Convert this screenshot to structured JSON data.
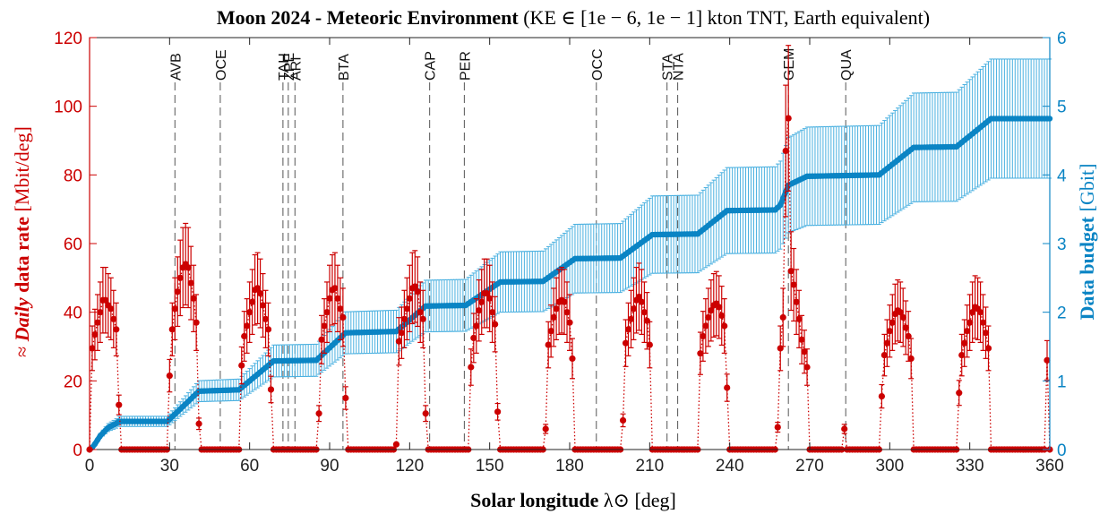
{
  "chart_data": {
    "type": "line",
    "title": {
      "bold": "Moon 2024 - Meteoric Environment",
      "rest": " (KE ∈ [1e − 6, 1e − 1] kton TNT, Earth equivalent)"
    },
    "xlabel": {
      "bold": "Solar longitude",
      "rest": " λ⊙ [deg]"
    },
    "ylabel_left": {
      "prefix": "≈ ",
      "italic": "Daily",
      "bold": " data rate",
      "rest": " [Mbit/deg]"
    },
    "ylabel_right": {
      "bold": "Data budget",
      "rest": " [Gbit]"
    },
    "xlim": [
      0,
      360
    ],
    "ylim_left": [
      0,
      120
    ],
    "ylim_right": [
      0,
      6
    ],
    "x_ticks": [
      "0",
      "30",
      "60",
      "90",
      "120",
      "150",
      "180",
      "210",
      "240",
      "270",
      "300",
      "330",
      "360"
    ],
    "y_left_ticks": [
      "0",
      "20",
      "40",
      "60",
      "80",
      "100",
      "120"
    ],
    "y_right_ticks": [
      "0",
      "1",
      "2",
      "3",
      "4",
      "5",
      "6"
    ],
    "grid": false,
    "colors": {
      "rate": "#cc0000",
      "budget": "#0a84c4",
      "budget_err": "#49b0e0",
      "shower_line": "#555555"
    },
    "showers": [
      {
        "name": "AVB",
        "lon": 32
      },
      {
        "name": "OCE",
        "lon": 49
      },
      {
        "name": "TAH",
        "lon": 72.5
      },
      {
        "name": "ZPE",
        "lon": 74.5
      },
      {
        "name": "ARI",
        "lon": 77
      },
      {
        "name": "BTA",
        "lon": 95
      },
      {
        "name": "CAP",
        "lon": 127.5
      },
      {
        "name": "PER",
        "lon": 140.5
      },
      {
        "name": "OCC",
        "lon": 190
      },
      {
        "name": "STA",
        "lon": 216.5
      },
      {
        "name": "NTA",
        "lon": 220.5
      },
      {
        "name": "GEM",
        "lon": 262
      },
      {
        "name": "QUA",
        "lon": 283.5
      }
    ],
    "series": [
      {
        "axis": "left",
        "style": "points-errorbars-dotted",
        "points": [
          [
            0,
            0
          ],
          [
            1,
            29.5
          ],
          [
            2,
            33.5
          ],
          [
            3,
            37
          ],
          [
            4,
            40
          ],
          [
            5,
            43.5
          ],
          [
            6,
            43.5
          ],
          [
            7,
            42
          ],
          [
            8,
            41
          ],
          [
            9,
            38
          ],
          [
            10,
            35
          ],
          [
            11,
            13
          ],
          [
            30,
            21.5
          ],
          [
            31,
            35
          ],
          [
            32,
            41
          ],
          [
            33,
            46
          ],
          [
            34,
            50
          ],
          [
            35,
            53
          ],
          [
            36,
            54
          ],
          [
            37,
            53
          ],
          [
            38,
            48.5
          ],
          [
            39,
            44
          ],
          [
            40,
            37
          ],
          [
            41,
            7.5
          ],
          [
            57,
            24.5
          ],
          [
            58,
            33
          ],
          [
            59,
            36
          ],
          [
            60,
            40
          ],
          [
            61,
            43
          ],
          [
            62,
            46.5
          ],
          [
            63,
            47
          ],
          [
            64,
            45.5
          ],
          [
            65,
            42
          ],
          [
            66,
            38
          ],
          [
            67,
            35
          ],
          [
            68,
            17.5
          ],
          [
            86,
            10.5
          ],
          [
            87,
            32
          ],
          [
            88,
            36
          ],
          [
            89,
            40
          ],
          [
            90,
            44
          ],
          [
            91,
            46.5
          ],
          [
            92,
            47
          ],
          [
            93,
            44
          ],
          [
            94,
            41
          ],
          [
            95,
            38.5
          ],
          [
            96,
            15
          ],
          [
            115,
            1.5
          ],
          [
            116,
            31.5
          ],
          [
            117,
            34
          ],
          [
            118,
            38
          ],
          [
            119,
            41
          ],
          [
            120,
            44
          ],
          [
            121,
            47
          ],
          [
            122,
            47.5
          ],
          [
            123,
            46
          ],
          [
            124,
            40
          ],
          [
            125,
            38
          ],
          [
            126,
            10.5
          ],
          [
            143,
            24
          ],
          [
            144,
            32.5
          ],
          [
            145,
            36
          ],
          [
            146,
            40.5
          ],
          [
            147,
            43
          ],
          [
            148,
            45.5
          ],
          [
            149,
            45.5
          ],
          [
            150,
            44
          ],
          [
            151,
            40
          ],
          [
            152,
            36.5
          ],
          [
            153,
            11
          ],
          [
            171,
            6
          ],
          [
            172,
            30.5
          ],
          [
            173,
            34.5
          ],
          [
            174,
            38.5
          ],
          [
            175,
            41
          ],
          [
            176,
            43
          ],
          [
            177,
            43.5
          ],
          [
            178,
            43
          ],
          [
            179,
            40
          ],
          [
            180,
            37
          ],
          [
            181,
            26.5
          ],
          [
            200,
            8.5
          ],
          [
            201,
            31
          ],
          [
            202,
            35
          ],
          [
            203,
            38
          ],
          [
            204,
            41
          ],
          [
            205,
            43.5
          ],
          [
            206,
            44.5
          ],
          [
            207,
            43
          ],
          [
            208,
            40
          ],
          [
            209,
            37.5
          ],
          [
            210,
            30.5
          ],
          [
            229,
            28
          ],
          [
            230,
            33
          ],
          [
            231,
            36
          ],
          [
            232,
            38.5
          ],
          [
            233,
            40.5
          ],
          [
            234,
            42
          ],
          [
            235,
            42.5
          ],
          [
            236,
            41.5
          ],
          [
            237,
            39
          ],
          [
            238,
            36
          ],
          [
            239,
            18
          ],
          [
            258,
            6.5
          ],
          [
            259,
            29.5
          ],
          [
            260,
            38.5
          ],
          [
            261,
            87
          ],
          [
            262,
            96.5
          ],
          [
            263,
            52
          ],
          [
            264,
            48
          ],
          [
            265,
            43
          ],
          [
            266,
            38
          ],
          [
            267,
            32
          ],
          [
            268,
            28.5
          ],
          [
            269,
            24
          ],
          [
            283,
            6
          ],
          [
            297,
            15.5
          ],
          [
            298,
            27.5
          ],
          [
            299,
            31
          ],
          [
            300,
            34.5
          ],
          [
            301,
            37
          ],
          [
            302,
            39.5
          ],
          [
            303,
            40.5
          ],
          [
            304,
            40
          ],
          [
            305,
            38.5
          ],
          [
            306,
            35.5
          ],
          [
            307,
            33
          ],
          [
            308,
            26.5
          ],
          [
            326,
            16.5
          ],
          [
            327,
            27.5
          ],
          [
            328,
            31
          ],
          [
            329,
            34.5
          ],
          [
            330,
            37
          ],
          [
            331,
            40
          ],
          [
            332,
            41.5
          ],
          [
            333,
            41
          ],
          [
            334,
            40
          ],
          [
            335,
            37
          ],
          [
            336,
            34
          ],
          [
            337,
            29.5
          ],
          [
            359,
            26
          ]
        ]
      },
      {
        "axis": "right",
        "style": "cumulative-errorbars",
        "knots": [
          [
            0,
            0
          ],
          [
            1,
            0.03
          ],
          [
            2,
            0.08
          ],
          [
            4,
            0.2
          ],
          [
            7,
            0.32
          ],
          [
            10,
            0.38
          ],
          [
            11,
            0.41
          ],
          [
            29,
            0.41
          ],
          [
            30,
            0.44
          ],
          [
            41,
            0.85
          ],
          [
            56,
            0.87
          ],
          [
            69,
            1.29
          ],
          [
            85,
            1.3
          ],
          [
            96,
            1.7
          ],
          [
            115,
            1.72
          ],
          [
            126,
            2.09
          ],
          [
            141,
            2.1
          ],
          [
            154,
            2.44
          ],
          [
            170,
            2.45
          ],
          [
            182,
            2.78
          ],
          [
            199,
            2.79
          ],
          [
            211,
            3.13
          ],
          [
            228,
            3.14
          ],
          [
            239,
            3.48
          ],
          [
            257,
            3.49
          ],
          [
            259,
            3.56
          ],
          [
            262,
            3.85
          ],
          [
            269,
            3.98
          ],
          [
            296,
            4.0
          ],
          [
            309,
            4.4
          ],
          [
            325,
            4.41
          ],
          [
            338,
            4.82
          ],
          [
            360,
            4.82
          ]
        ],
        "error_fraction": 0.18
      }
    ]
  }
}
